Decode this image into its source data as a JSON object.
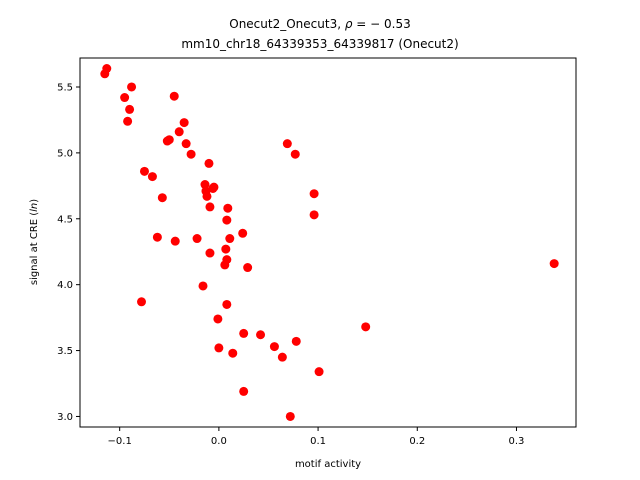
{
  "chart_data": {
    "type": "scatter",
    "title_line1_prefix": "Onecut2_Onecut3, ",
    "title_rho_symbol": "ρ",
    "title_rho_value": " = − 0.53",
    "title_line2": "mm10_chr18_64339353_64339817 (Onecut2)",
    "xlabel": "motif activity",
    "ylabel_prefix": "signal at CRE (",
    "ylabel_italic": "ln",
    "ylabel_suffix": ")",
    "xlim": [
      -0.14,
      0.36
    ],
    "ylim": [
      2.92,
      5.72
    ],
    "xticks": [
      {
        "value": -0.1,
        "label": "−0.1"
      },
      {
        "value": 0.0,
        "label": "0.0"
      },
      {
        "value": 0.1,
        "label": "0.1"
      },
      {
        "value": 0.2,
        "label": "0.2"
      },
      {
        "value": 0.3,
        "label": "0.3"
      }
    ],
    "yticks": [
      {
        "value": 3.0,
        "label": "3.0"
      },
      {
        "value": 3.5,
        "label": "3.5"
      },
      {
        "value": 4.0,
        "label": "4.0"
      },
      {
        "value": 4.5,
        "label": "4.5"
      },
      {
        "value": 5.0,
        "label": "5.0"
      },
      {
        "value": 5.5,
        "label": "5.5"
      }
    ],
    "marker_color": "#ff0000",
    "grid": false,
    "points": [
      {
        "x": -0.115,
        "y": 5.6
      },
      {
        "x": -0.113,
        "y": 5.64
      },
      {
        "x": -0.095,
        "y": 5.42
      },
      {
        "x": -0.088,
        "y": 5.5
      },
      {
        "x": -0.09,
        "y": 5.33
      },
      {
        "x": -0.092,
        "y": 5.24
      },
      {
        "x": -0.045,
        "y": 5.43
      },
      {
        "x": -0.035,
        "y": 5.23
      },
      {
        "x": -0.04,
        "y": 5.16
      },
      {
        "x": -0.05,
        "y": 5.1
      },
      {
        "x": -0.052,
        "y": 5.09
      },
      {
        "x": -0.033,
        "y": 5.07
      },
      {
        "x": -0.028,
        "y": 4.99
      },
      {
        "x": -0.01,
        "y": 4.92
      },
      {
        "x": -0.075,
        "y": 4.86
      },
      {
        "x": -0.067,
        "y": 4.82
      },
      {
        "x": -0.014,
        "y": 4.76
      },
      {
        "x": -0.005,
        "y": 4.74
      },
      {
        "x": -0.006,
        "y": 4.73
      },
      {
        "x": -0.013,
        "y": 4.71
      },
      {
        "x": -0.012,
        "y": 4.67
      },
      {
        "x": -0.057,
        "y": 4.66
      },
      {
        "x": -0.009,
        "y": 4.59
      },
      {
        "x": 0.009,
        "y": 4.58
      },
      {
        "x": 0.008,
        "y": 4.49
      },
      {
        "x": 0.024,
        "y": 4.39
      },
      {
        "x": -0.062,
        "y": 4.36
      },
      {
        "x": -0.022,
        "y": 4.35
      },
      {
        "x": 0.011,
        "y": 4.35
      },
      {
        "x": -0.044,
        "y": 4.33
      },
      {
        "x": 0.007,
        "y": 4.27
      },
      {
        "x": -0.009,
        "y": 4.24
      },
      {
        "x": 0.008,
        "y": 4.19
      },
      {
        "x": 0.006,
        "y": 4.15
      },
      {
        "x": 0.029,
        "y": 4.13
      },
      {
        "x": -0.016,
        "y": 3.99
      },
      {
        "x": -0.078,
        "y": 3.87
      },
      {
        "x": 0.008,
        "y": 3.85
      },
      {
        "x": -0.001,
        "y": 3.74
      },
      {
        "x": 0.025,
        "y": 3.63
      },
      {
        "x": 0.042,
        "y": 3.62
      },
      {
        "x": 0.078,
        "y": 3.57
      },
      {
        "x": 0.056,
        "y": 3.53
      },
      {
        "x": 0.0,
        "y": 3.52
      },
      {
        "x": 0.014,
        "y": 3.48
      },
      {
        "x": 0.064,
        "y": 3.45
      },
      {
        "x": 0.101,
        "y": 3.34
      },
      {
        "x": 0.025,
        "y": 3.19
      },
      {
        "x": 0.072,
        "y": 3.0
      },
      {
        "x": 0.069,
        "y": 5.07
      },
      {
        "x": 0.077,
        "y": 4.99
      },
      {
        "x": 0.096,
        "y": 4.69
      },
      {
        "x": 0.096,
        "y": 4.53
      },
      {
        "x": 0.148,
        "y": 3.68
      },
      {
        "x": 0.338,
        "y": 4.16
      }
    ]
  }
}
